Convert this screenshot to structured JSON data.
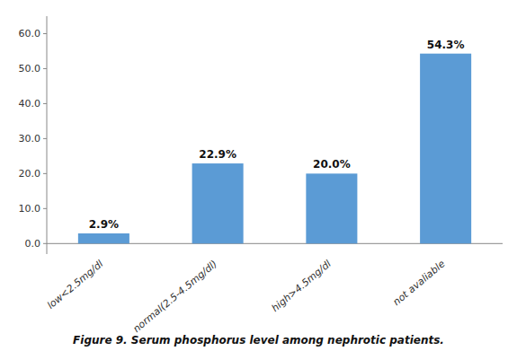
{
  "chart_data": {
    "type": "bar",
    "title": "Figure 9. Serum phosphorus level among nephrotic patients.",
    "categories": [
      "low<2.5mg/dl",
      "normal(2.5-4.5mg/dl)",
      "high>4.5mg/dl",
      "not avaliable"
    ],
    "values": [
      2.9,
      22.9,
      20.0,
      54.3
    ],
    "value_labels": [
      "2.9%",
      "22.9%",
      "20.0%",
      "54.3%"
    ],
    "color": "#5b9bd5",
    "ylim": [
      -3,
      65
    ],
    "yticks": [
      {
        "value": 0.0,
        "label": "0.0"
      },
      {
        "value": 10.0,
        "label": "10.0"
      },
      {
        "value": 20.0,
        "label": "20.0"
      },
      {
        "value": 30.0,
        "label": "30.0"
      },
      {
        "value": 40.0,
        "label": "40.0"
      },
      {
        "value": 50.0,
        "label": "50.0"
      },
      {
        "value": 60.0,
        "label": "60.0"
      }
    ],
    "grid": false,
    "data_labels": true
  }
}
